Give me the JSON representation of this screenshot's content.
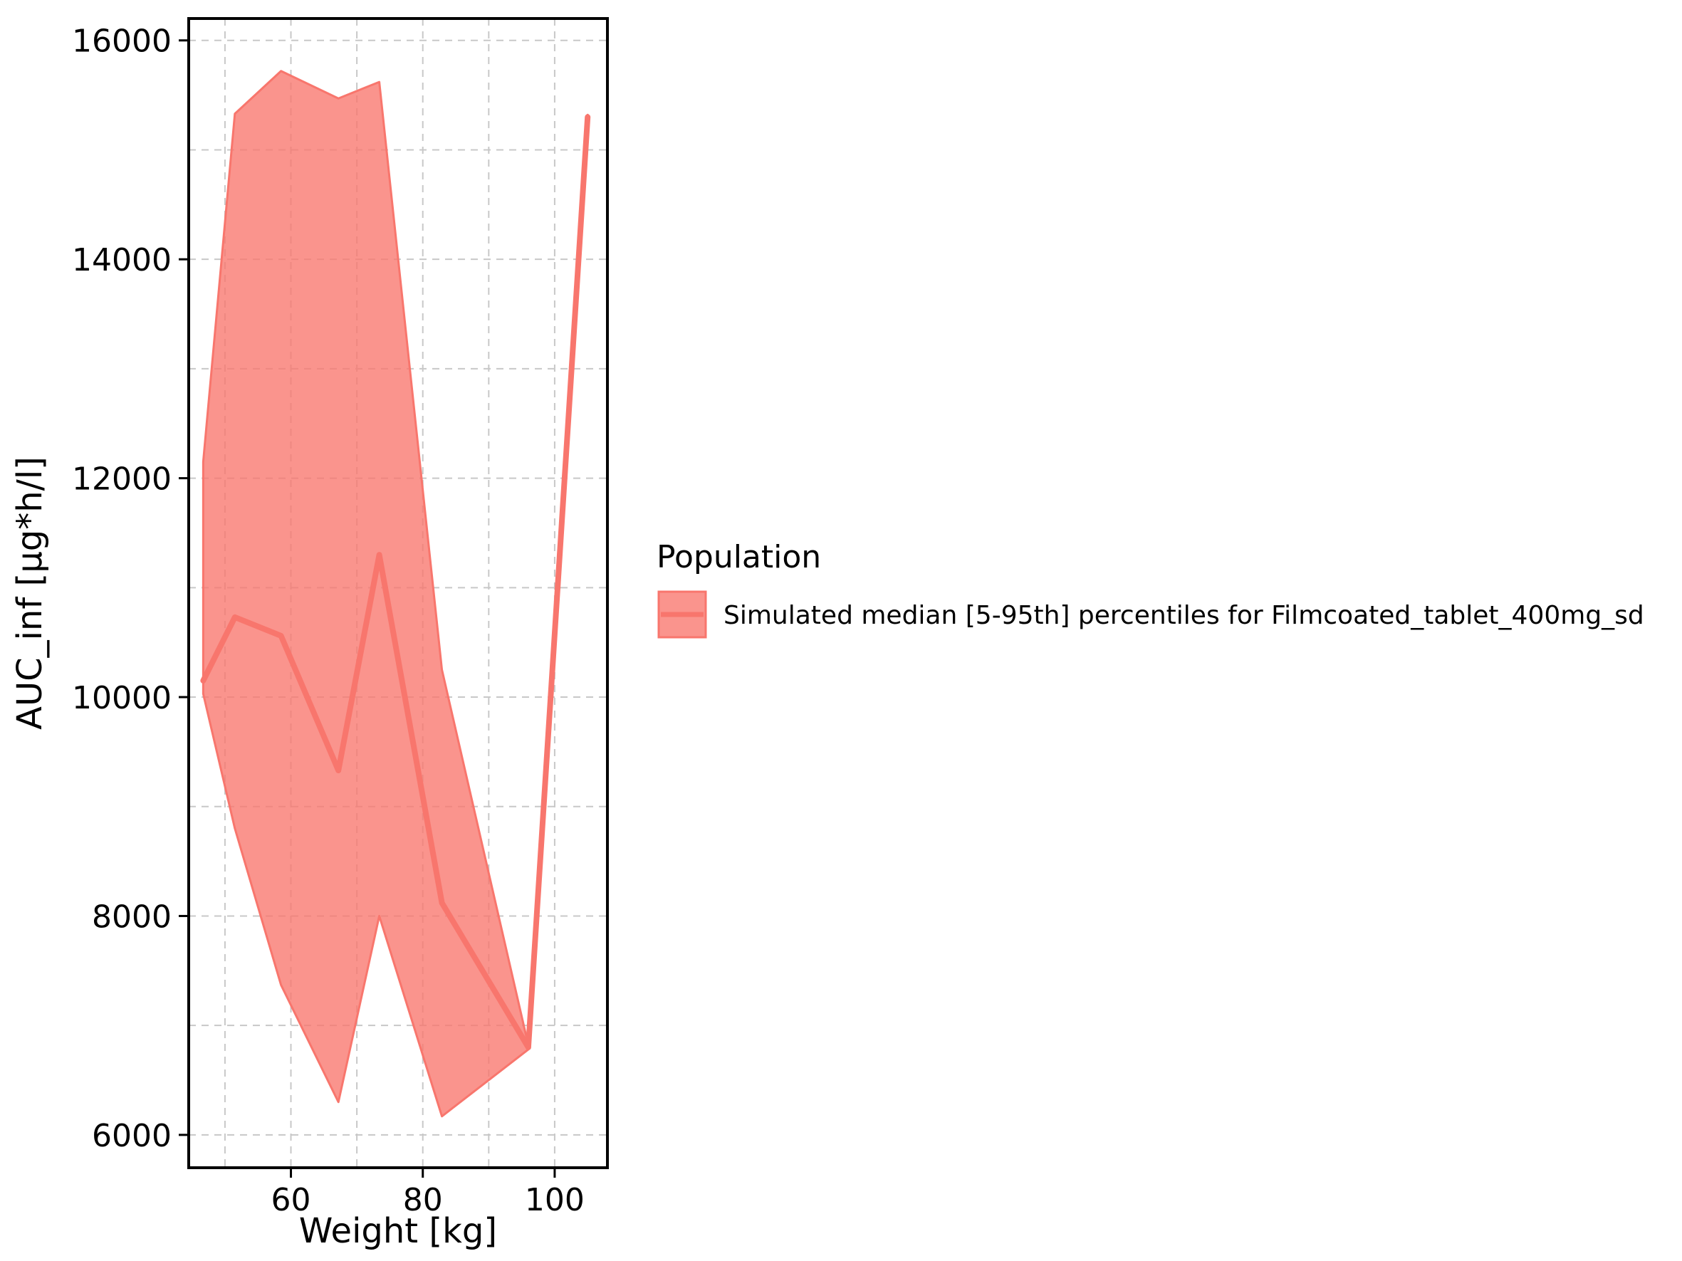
{
  "chart_data": {
    "type": "area",
    "title": "",
    "xlabel": "Weight [kg]",
    "ylabel": "AUC_inf [µg*h/l]",
    "xlim": [
      44.5,
      108
    ],
    "ylim": [
      5700,
      16200
    ],
    "x_ticks": [
      60,
      80,
      100
    ],
    "y_ticks": [
      6000,
      8000,
      10000,
      12000,
      14000,
      16000
    ],
    "x_tick_labels": [
      "60",
      "80",
      "100"
    ],
    "y_tick_labels": [
      "6000",
      "8000",
      "10000",
      "12000",
      "14000",
      "16000"
    ],
    "grid": true,
    "legend": {
      "title": "Population",
      "placement": "right",
      "entries": [
        "Simulated median [5-95th] percentiles for Filmcoated_tablet_400mg_sd"
      ]
    },
    "series": [
      {
        "name": "Simulated median [5-95th] percentiles for Filmcoated_tablet_400mg_sd",
        "color": "#F8766D",
        "x": [
          46.7,
          51.5,
          58.5,
          67.2,
          73.4,
          82.9,
          96.0,
          105.0
        ],
        "median": [
          10150,
          10730,
          10560,
          9330,
          11300,
          8120,
          6800,
          15300
        ],
        "p5": [
          10030,
          8800,
          7370,
          6300,
          8000,
          6170,
          6780,
          15250
        ],
        "p95": [
          12150,
          15330,
          15720,
          15470,
          15620,
          10250,
          6820,
          15320
        ]
      }
    ]
  }
}
